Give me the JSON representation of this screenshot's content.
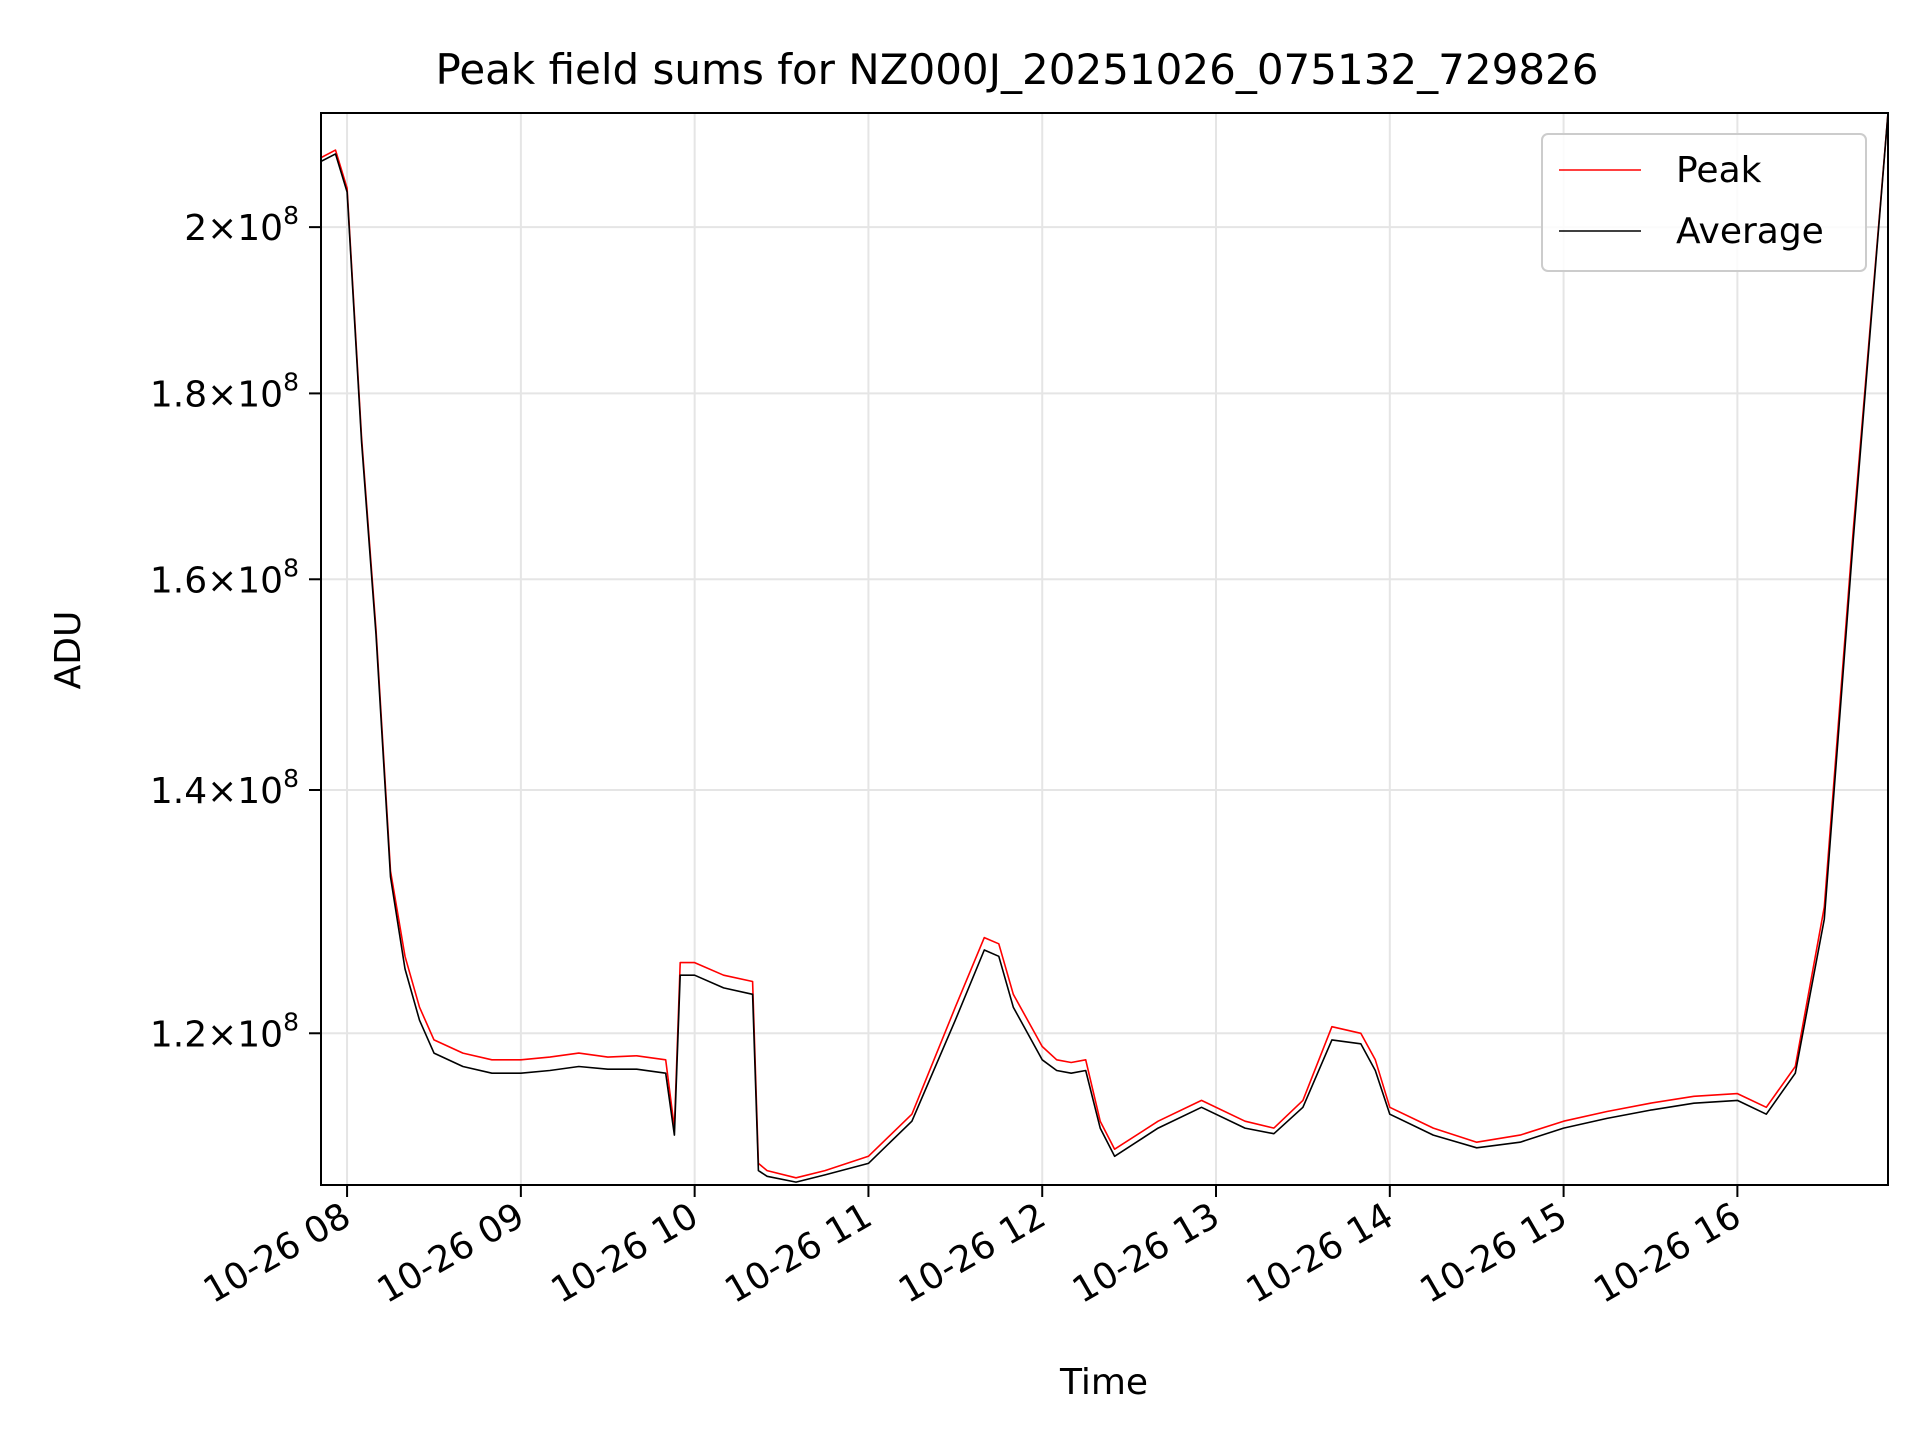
{
  "chart_data": {
    "type": "line",
    "title": "Peak field sums for NZ000J_20251026_075132_729826",
    "xlabel": "Time",
    "ylabel": "ADU",
    "y_scale": "log",
    "xlim": [
      "2025-10-26 07:51",
      "2025-10-26 16:52"
    ],
    "ylim": [
      109000000,
      215000000
    ],
    "grid": true,
    "legend_position": "top-right",
    "x_ticks": [
      {
        "value": "2025-10-26 08:00",
        "label": "10-26 08"
      },
      {
        "value": "2025-10-26 09:00",
        "label": "10-26 09"
      },
      {
        "value": "2025-10-26 10:00",
        "label": "10-26 10"
      },
      {
        "value": "2025-10-26 11:00",
        "label": "10-26 11"
      },
      {
        "value": "2025-10-26 12:00",
        "label": "10-26 12"
      },
      {
        "value": "2025-10-26 13:00",
        "label": "10-26 13"
      },
      {
        "value": "2025-10-26 14:00",
        "label": "10-26 14"
      },
      {
        "value": "2025-10-26 15:00",
        "label": "10-26 15"
      },
      {
        "value": "2025-10-26 16:00",
        "label": "10-26 16"
      }
    ],
    "y_ticks": [
      {
        "value": 120000000,
        "mantissa": "1.2",
        "base": "10",
        "exp": "8"
      },
      {
        "value": 140000000,
        "mantissa": "1.4",
        "base": "10",
        "exp": "8"
      },
      {
        "value": 160000000,
        "mantissa": "1.6",
        "base": "10",
        "exp": "8"
      },
      {
        "value": 180000000,
        "mantissa": "1.8",
        "base": "10",
        "exp": "8"
      },
      {
        "value": 200000000,
        "mantissa": "2",
        "base": "10",
        "exp": "8"
      }
    ],
    "series": [
      {
        "name": "Peak",
        "color": "#ff0000",
        "x": [
          "2025-10-26 07:51",
          "2025-10-26 07:56",
          "2025-10-26 08:00",
          "2025-10-26 08:05",
          "2025-10-26 08:10",
          "2025-10-26 08:15",
          "2025-10-26 08:20",
          "2025-10-26 08:25",
          "2025-10-26 08:30",
          "2025-10-26 08:40",
          "2025-10-26 08:50",
          "2025-10-26 09:00",
          "2025-10-26 09:10",
          "2025-10-26 09:20",
          "2025-10-26 09:30",
          "2025-10-26 09:40",
          "2025-10-26 09:50",
          "2025-10-26 09:53",
          "2025-10-26 09:55",
          "2025-10-26 10:00",
          "2025-10-26 10:10",
          "2025-10-26 10:20",
          "2025-10-26 10:22",
          "2025-10-26 10:25",
          "2025-10-26 10:35",
          "2025-10-26 10:45",
          "2025-10-26 11:00",
          "2025-10-26 11:15",
          "2025-10-26 11:30",
          "2025-10-26 11:40",
          "2025-10-26 11:45",
          "2025-10-26 11:50",
          "2025-10-26 12:00",
          "2025-10-26 12:05",
          "2025-10-26 12:10",
          "2025-10-26 12:15",
          "2025-10-26 12:20",
          "2025-10-26 12:25",
          "2025-10-26 12:40",
          "2025-10-26 12:55",
          "2025-10-26 13:10",
          "2025-10-26 13:20",
          "2025-10-26 13:30",
          "2025-10-26 13:40",
          "2025-10-26 13:50",
          "2025-10-26 13:55",
          "2025-10-26 14:00",
          "2025-10-26 14:15",
          "2025-10-26 14:30",
          "2025-10-26 14:45",
          "2025-10-26 15:00",
          "2025-10-26 15:15",
          "2025-10-26 15:30",
          "2025-10-26 15:45",
          "2025-10-26 16:00",
          "2025-10-26 16:10",
          "2025-10-26 16:20",
          "2025-10-26 16:30",
          "2025-10-26 16:40",
          "2025-10-26 16:52"
        ],
        "values": [
          209000000,
          210000000,
          205000000,
          175000000,
          155000000,
          133000000,
          126000000,
          122000000,
          119500000,
          118500000,
          118000000,
          118000000,
          118200000,
          118500000,
          118200000,
          118300000,
          118000000,
          113000000,
          125500000,
          125500000,
          124500000,
          124000000,
          110500000,
          110000000,
          109500000,
          110000000,
          111000000,
          114000000,
          122000000,
          127500000,
          127000000,
          123000000,
          119000000,
          118000000,
          117800000,
          118000000,
          113500000,
          111500000,
          113500000,
          115000000,
          113500000,
          113000000,
          115000000,
          120500000,
          120000000,
          118000000,
          114500000,
          113000000,
          112000000,
          112500000,
          113500000,
          114200000,
          114800000,
          115300000,
          115500000,
          114500000,
          117500000,
          130000000,
          165000000,
          215000000
        ]
      },
      {
        "name": "Average",
        "color": "#000000",
        "x": [
          "2025-10-26 07:51",
          "2025-10-26 07:56",
          "2025-10-26 08:00",
          "2025-10-26 08:05",
          "2025-10-26 08:10",
          "2025-10-26 08:15",
          "2025-10-26 08:20",
          "2025-10-26 08:25",
          "2025-10-26 08:30",
          "2025-10-26 08:40",
          "2025-10-26 08:50",
          "2025-10-26 09:00",
          "2025-10-26 09:10",
          "2025-10-26 09:20",
          "2025-10-26 09:30",
          "2025-10-26 09:40",
          "2025-10-26 09:50",
          "2025-10-26 09:53",
          "2025-10-26 09:55",
          "2025-10-26 10:00",
          "2025-10-26 10:10",
          "2025-10-26 10:20",
          "2025-10-26 10:22",
          "2025-10-26 10:25",
          "2025-10-26 10:35",
          "2025-10-26 10:45",
          "2025-10-26 11:00",
          "2025-10-26 11:15",
          "2025-10-26 11:30",
          "2025-10-26 11:40",
          "2025-10-26 11:45",
          "2025-10-26 11:50",
          "2025-10-26 12:00",
          "2025-10-26 12:05",
          "2025-10-26 12:10",
          "2025-10-26 12:15",
          "2025-10-26 12:20",
          "2025-10-26 12:25",
          "2025-10-26 12:40",
          "2025-10-26 12:55",
          "2025-10-26 13:10",
          "2025-10-26 13:20",
          "2025-10-26 13:30",
          "2025-10-26 13:40",
          "2025-10-26 13:50",
          "2025-10-26 13:55",
          "2025-10-26 14:00",
          "2025-10-26 14:15",
          "2025-10-26 14:30",
          "2025-10-26 14:45",
          "2025-10-26 15:00",
          "2025-10-26 15:15",
          "2025-10-26 15:30",
          "2025-10-26 15:45",
          "2025-10-26 16:00",
          "2025-10-26 16:10",
          "2025-10-26 16:20",
          "2025-10-26 16:30",
          "2025-10-26 16:40",
          "2025-10-26 16:52"
        ],
        "values": [
          208500000,
          209500000,
          204500000,
          174500000,
          154500000,
          132500000,
          125000000,
          121000000,
          118500000,
          117500000,
          117000000,
          117000000,
          117200000,
          117500000,
          117300000,
          117300000,
          117000000,
          112500000,
          124500000,
          124500000,
          123500000,
          123000000,
          110000000,
          109600000,
          109200000,
          109700000,
          110500000,
          113500000,
          121000000,
          126500000,
          126000000,
          122000000,
          118000000,
          117200000,
          117000000,
          117200000,
          113000000,
          111000000,
          113000000,
          114500000,
          113000000,
          112600000,
          114500000,
          119500000,
          119200000,
          117200000,
          114000000,
          112500000,
          111600000,
          112000000,
          113000000,
          113700000,
          114300000,
          114800000,
          115000000,
          114000000,
          117000000,
          129000000,
          164000000,
          215000000
        ]
      }
    ]
  }
}
